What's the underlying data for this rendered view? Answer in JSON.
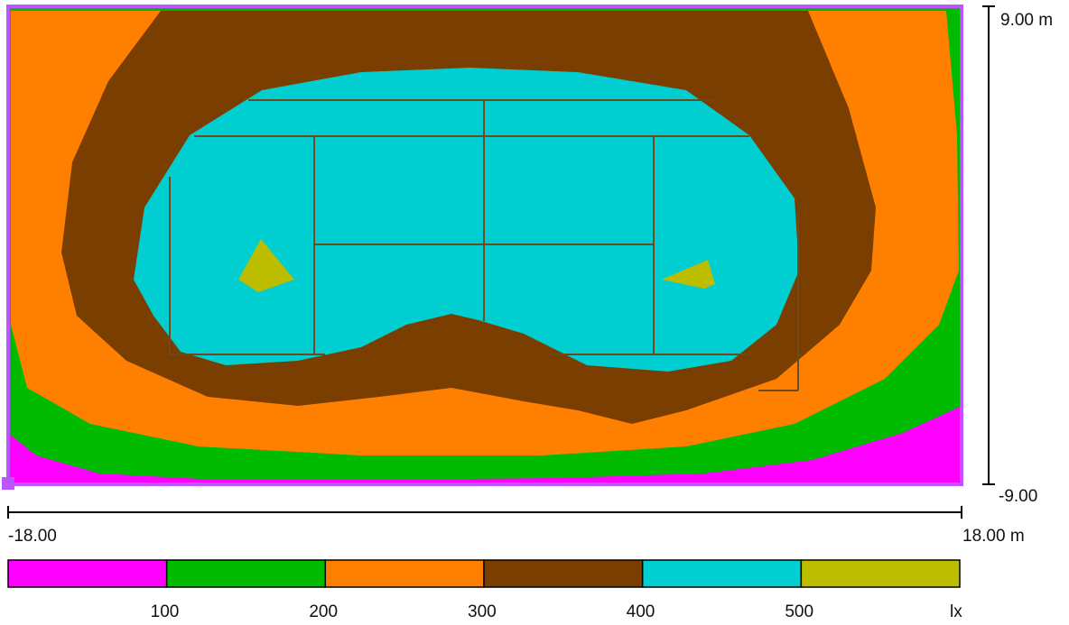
{
  "axes": {
    "y_top_label": "9.00 m",
    "y_bottom_label": "-9.00",
    "x_left_label": "-18.00",
    "x_right_label": "18.00 m"
  },
  "legend": {
    "unit": "lx",
    "ticks": [
      "100",
      "200",
      "300",
      "400",
      "500"
    ],
    "bands": [
      {
        "color": "#ff00ff"
      },
      {
        "color": "#00bb00"
      },
      {
        "color": "#ff8000"
      },
      {
        "color": "#7a3e00"
      },
      {
        "color": "#00ced1"
      },
      {
        "color": "#bdbd00"
      }
    ]
  },
  "colors": {
    "frame": "#bb55ff",
    "court_lines": "#6b4a20"
  }
}
